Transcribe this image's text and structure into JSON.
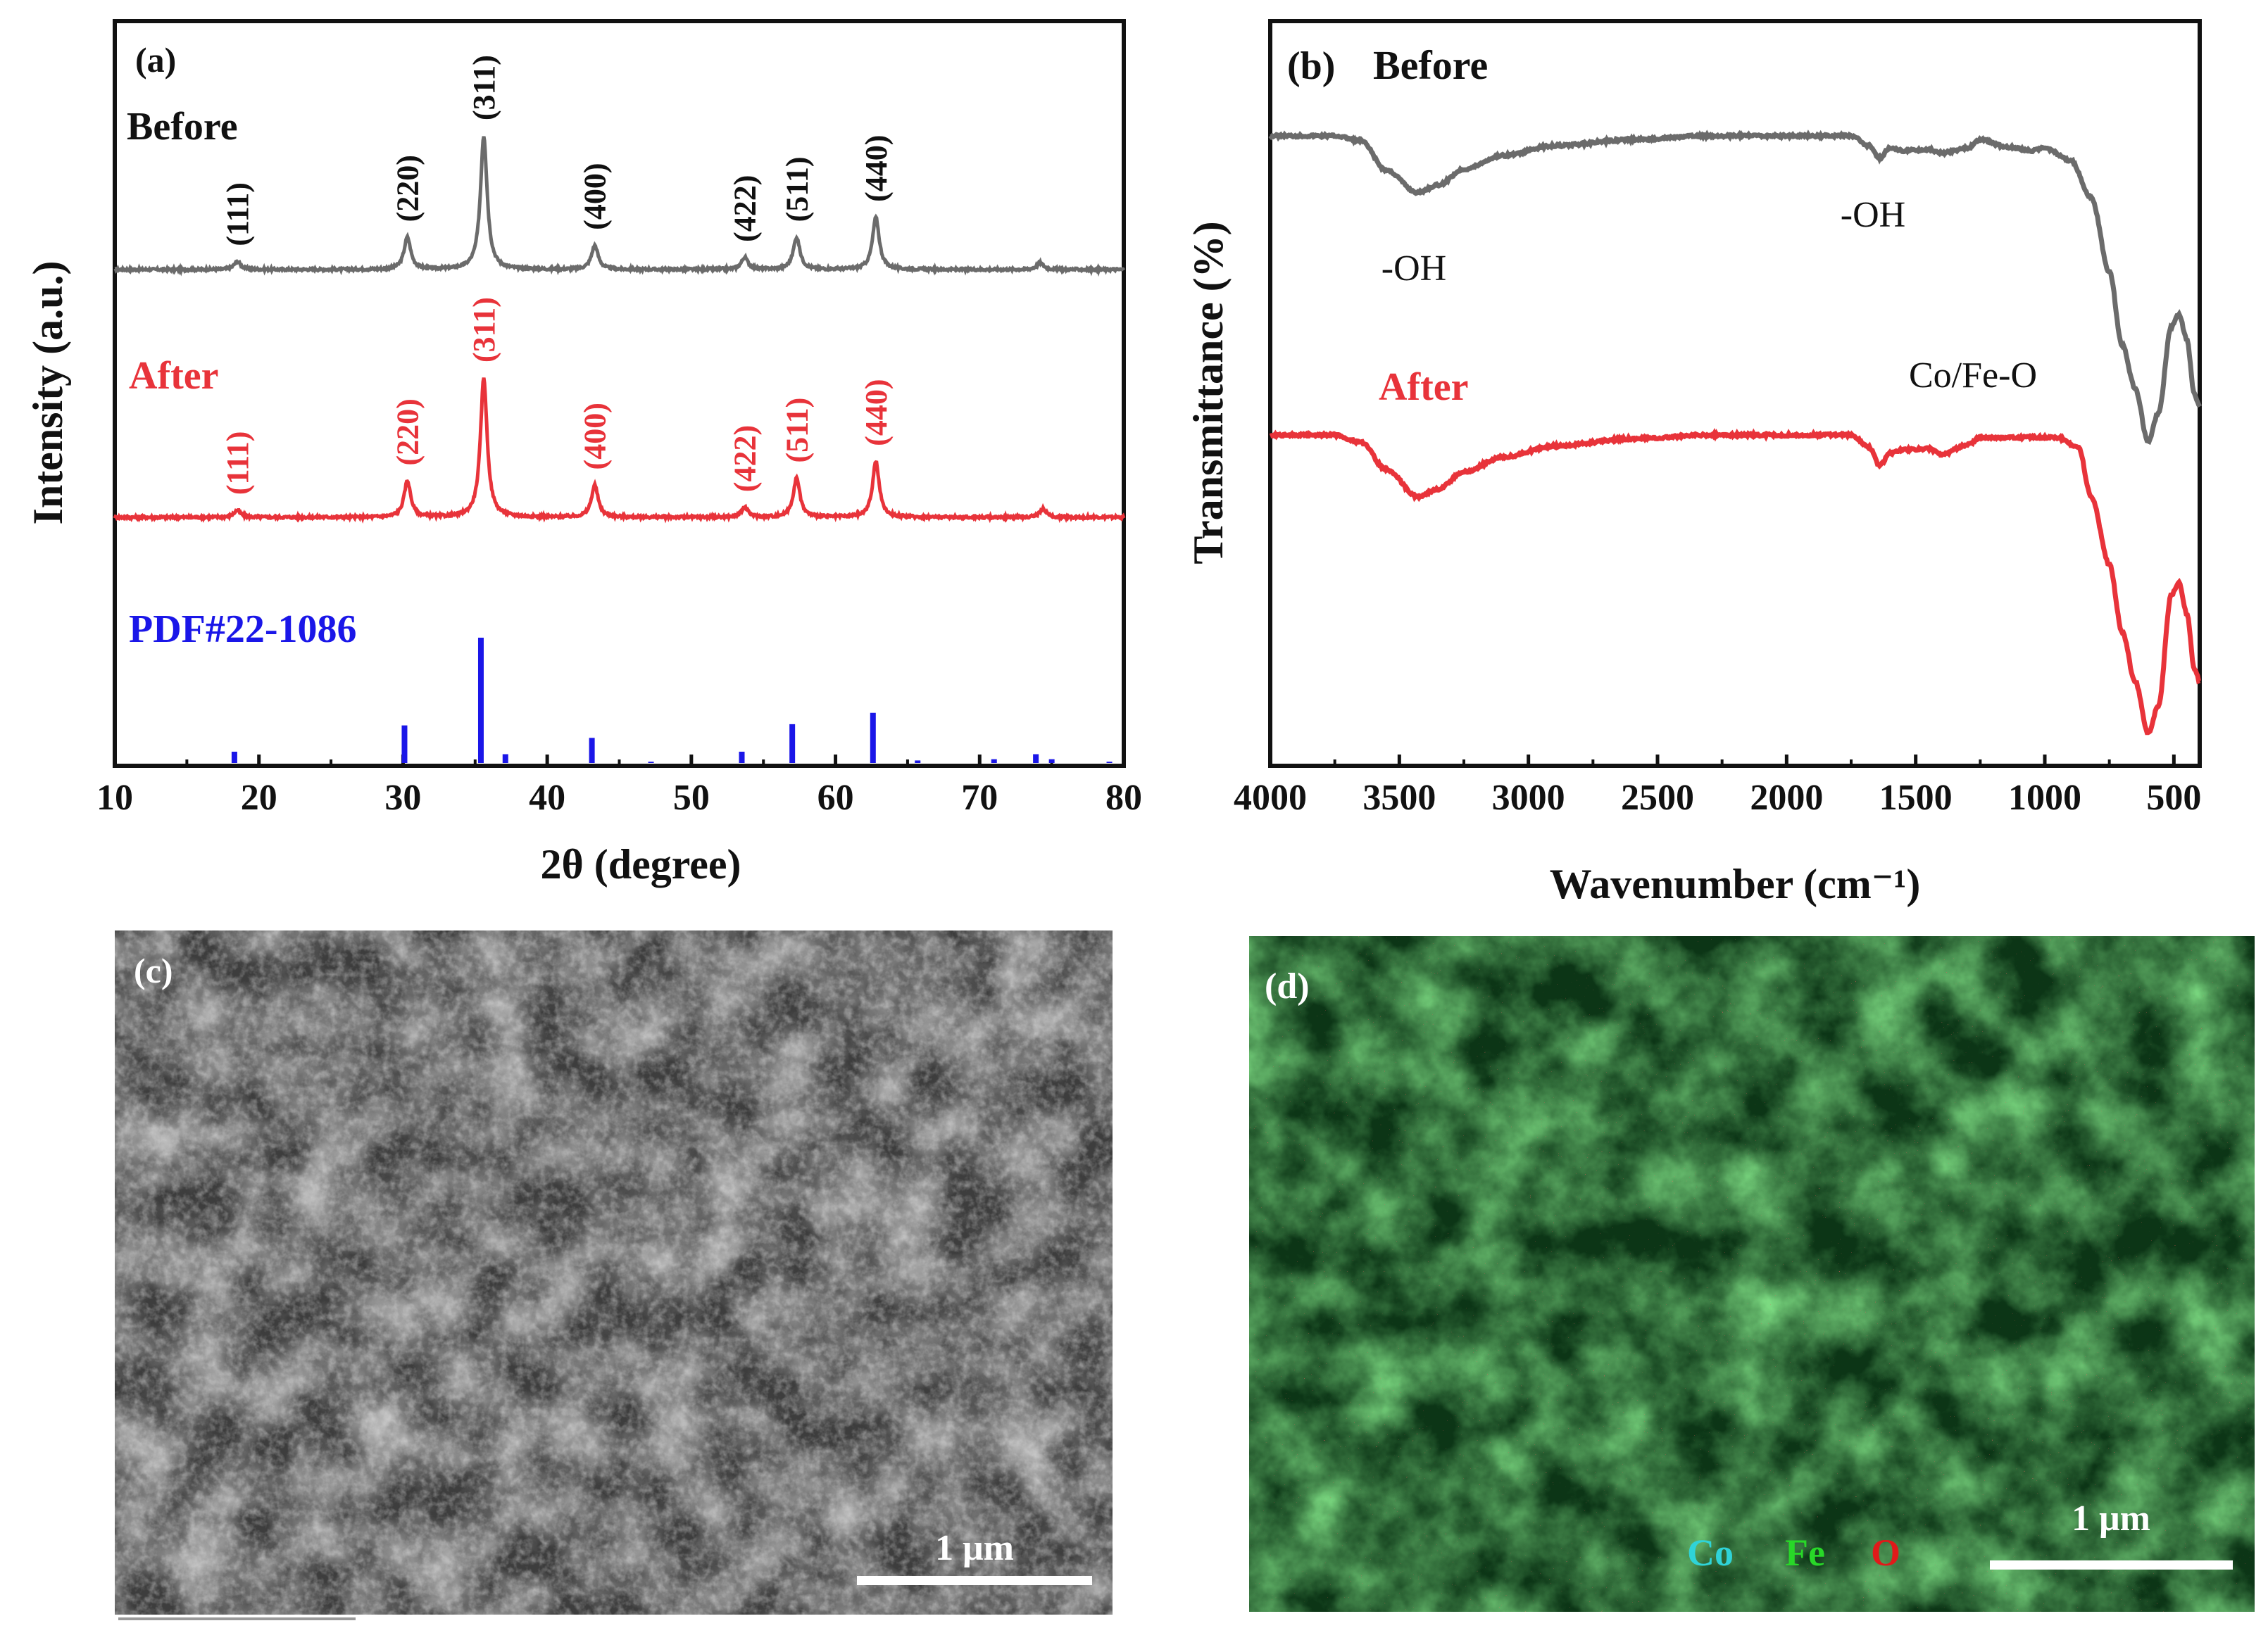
{
  "colors": {
    "before": "#6b6b6b",
    "after": "#e8333a",
    "pdf": "#1a16e8",
    "axis": "#111111"
  },
  "panel_labels": {
    "a": "(a)",
    "b": "(b)",
    "c": "(c)",
    "d": "(d)"
  },
  "sem": {
    "scalebar": "1 μm"
  },
  "eds": {
    "scalebar": "1 μm",
    "legend": [
      {
        "label": "Co",
        "color": "#2fd3d8"
      },
      {
        "label": "Fe",
        "color": "#28d828"
      },
      {
        "label": "O",
        "color": "#e01a1a"
      }
    ]
  },
  "chart_data": [
    {
      "type": "line",
      "panel": "(a)",
      "xlabel": "2θ (degree)",
      "ylabel": "Intensity (a.u.)",
      "xlim": [
        10,
        80
      ],
      "xticks": [
        10,
        20,
        30,
        40,
        50,
        60,
        70,
        80
      ],
      "series": [
        {
          "name": "Before",
          "peaks": [
            {
              "x": 18.5,
              "h": 0.06
            },
            {
              "x": 30.3,
              "h": 0.24
            },
            {
              "x": 35.6,
              "h": 1.0
            },
            {
              "x": 43.3,
              "h": 0.18
            },
            {
              "x": 53.7,
              "h": 0.09
            },
            {
              "x": 57.3,
              "h": 0.24
            },
            {
              "x": 62.8,
              "h": 0.39
            },
            {
              "x": 74.2,
              "h": 0.05
            }
          ],
          "peak_labels": [
            {
              "x": 18.5,
              "label": "(111)"
            },
            {
              "x": 30.3,
              "label": "(220)"
            },
            {
              "x": 35.6,
              "label": "(311)"
            },
            {
              "x": 43.3,
              "label": "(400)"
            },
            {
              "x": 53.7,
              "label": "(422)"
            },
            {
              "x": 57.3,
              "label": "(511)"
            },
            {
              "x": 62.8,
              "label": "(440)"
            }
          ]
        },
        {
          "name": "After",
          "peaks": [
            {
              "x": 18.5,
              "h": 0.05
            },
            {
              "x": 30.3,
              "h": 0.26
            },
            {
              "x": 35.6,
              "h": 1.0
            },
            {
              "x": 43.3,
              "h": 0.23
            },
            {
              "x": 53.7,
              "h": 0.07
            },
            {
              "x": 57.3,
              "h": 0.28
            },
            {
              "x": 62.8,
              "h": 0.4
            },
            {
              "x": 74.4,
              "h": 0.06
            }
          ],
          "peak_labels": [
            {
              "x": 18.5,
              "label": "(111)"
            },
            {
              "x": 30.3,
              "label": "(220)"
            },
            {
              "x": 35.6,
              "label": "(311)"
            },
            {
              "x": 43.3,
              "label": "(400)"
            },
            {
              "x": 53.7,
              "label": "(422)"
            },
            {
              "x": 57.3,
              "label": "(511)"
            },
            {
              "x": 62.8,
              "label": "(440)"
            }
          ]
        },
        {
          "name": "PDF#22-1086",
          "type": "stick",
          "sticks": [
            {
              "x": 18.3,
              "h": 0.09
            },
            {
              "x": 30.1,
              "h": 0.3
            },
            {
              "x": 35.4,
              "h": 1.0
            },
            {
              "x": 37.1,
              "h": 0.07
            },
            {
              "x": 43.1,
              "h": 0.2
            },
            {
              "x": 47.2,
              "h": 0.01
            },
            {
              "x": 53.5,
              "h": 0.09
            },
            {
              "x": 57.0,
              "h": 0.31
            },
            {
              "x": 62.6,
              "h": 0.4
            },
            {
              "x": 65.7,
              "h": 0.02
            },
            {
              "x": 71.0,
              "h": 0.03
            },
            {
              "x": 73.9,
              "h": 0.07
            },
            {
              "x": 75.0,
              "h": 0.03
            },
            {
              "x": 79.0,
              "h": 0.01
            }
          ]
        }
      ]
    },
    {
      "type": "line",
      "panel": "(b)",
      "xlabel": "Wavenumber (cm⁻¹)",
      "ylabel": "Transmittance (%)",
      "xlim": [
        4000,
        400
      ],
      "xticks": [
        4000,
        3500,
        3000,
        2500,
        2000,
        1500,
        1000,
        500
      ],
      "annotations": [
        {
          "x": 3430,
          "label": "-OH",
          "series": "Before"
        },
        {
          "x": 1630,
          "label": "-OH",
          "series": "Before"
        },
        {
          "x": 600,
          "label": "Co/Fe-O",
          "series": "Before"
        }
      ],
      "series": [
        {
          "name": "Before",
          "points": [
            [
              4000,
              0.0
            ],
            [
              3750,
              0.0
            ],
            [
              3650,
              0.04
            ],
            [
              3550,
              0.28
            ],
            [
              3430,
              0.46
            ],
            [
              3350,
              0.4
            ],
            [
              3250,
              0.27
            ],
            [
              3100,
              0.16
            ],
            [
              2900,
              0.08
            ],
            [
              2600,
              0.03
            ],
            [
              2300,
              0.0
            ],
            [
              2000,
              0.0
            ],
            [
              1750,
              0.0
            ],
            [
              1680,
              0.08
            ],
            [
              1640,
              0.18
            ],
            [
              1600,
              0.1
            ],
            [
              1550,
              0.12
            ],
            [
              1450,
              0.11
            ],
            [
              1400,
              0.14
            ],
            [
              1300,
              0.1
            ],
            [
              1250,
              0.03
            ],
            [
              1150,
              0.09
            ],
            [
              1050,
              0.12
            ],
            [
              1000,
              0.1
            ],
            [
              900,
              0.2
            ],
            [
              820,
              0.5
            ],
            [
              750,
              1.1
            ],
            [
              700,
              1.7
            ],
            [
              650,
              2.05
            ],
            [
              600,
              2.48
            ],
            [
              560,
              2.25
            ],
            [
              510,
              1.55
            ],
            [
              480,
              1.45
            ],
            [
              450,
              1.65
            ],
            [
              420,
              2.1
            ],
            [
              400,
              2.2
            ]
          ]
        },
        {
          "name": "After",
          "points": [
            [
              4000,
              0.0
            ],
            [
              3750,
              0.0
            ],
            [
              3650,
              0.06
            ],
            [
              3550,
              0.28
            ],
            [
              3430,
              0.5
            ],
            [
              3350,
              0.44
            ],
            [
              3250,
              0.3
            ],
            [
              3100,
              0.18
            ],
            [
              2900,
              0.09
            ],
            [
              2600,
              0.03
            ],
            [
              2300,
              0.0
            ],
            [
              2000,
              0.0
            ],
            [
              1750,
              0.0
            ],
            [
              1680,
              0.1
            ],
            [
              1640,
              0.25
            ],
            [
              1600,
              0.15
            ],
            [
              1550,
              0.12
            ],
            [
              1450,
              0.11
            ],
            [
              1400,
              0.16
            ],
            [
              1300,
              0.08
            ],
            [
              1250,
              0.02
            ],
            [
              1150,
              0.02
            ],
            [
              1050,
              0.02
            ],
            [
              950,
              0.02
            ],
            [
              870,
              0.1
            ],
            [
              820,
              0.5
            ],
            [
              750,
              1.05
            ],
            [
              700,
              1.6
            ],
            [
              650,
              2.0
            ],
            [
              600,
              2.42
            ],
            [
              560,
              2.2
            ],
            [
              510,
              1.3
            ],
            [
              480,
              1.2
            ],
            [
              450,
              1.45
            ],
            [
              420,
              1.9
            ],
            [
              400,
              2.0
            ]
          ]
        }
      ]
    }
  ]
}
